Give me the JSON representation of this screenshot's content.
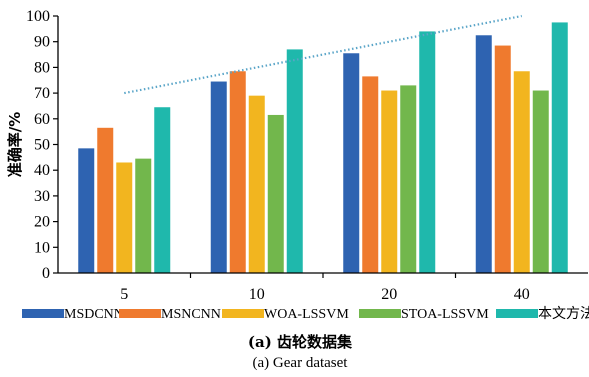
{
  "chart_data": {
    "type": "bar",
    "ylabel": "准确率/%",
    "xlabel": "",
    "categories": [
      "5",
      "10",
      "20",
      "40"
    ],
    "ylim": [
      0,
      100
    ],
    "yticks": [
      0,
      10,
      20,
      30,
      40,
      50,
      60,
      70,
      80,
      90,
      100
    ],
    "grid": false,
    "legend_position": "bottom",
    "series": [
      {
        "name": "MSDCNN",
        "color": "#2e63b1",
        "values": [
          48.5,
          74.5,
          85.5,
          92.5
        ]
      },
      {
        "name": "MSNCNN",
        "color": "#ef7a2e",
        "values": [
          56.5,
          78.5,
          76.5,
          88.5
        ]
      },
      {
        "name": "WOA-LSSVM",
        "color": "#f2b51f",
        "values": [
          43,
          69,
          71,
          78.5
        ]
      },
      {
        "name": "STOA-LSSVM",
        "color": "#72b74c",
        "values": [
          44.5,
          61.5,
          73,
          71
        ]
      },
      {
        "name": "本文方法",
        "color": "#1fb8ac",
        "values": [
          64.5,
          87,
          94,
          97.5
        ]
      }
    ],
    "trend_line": {
      "color": "#5aa5c8",
      "start": {
        "x": "5",
        "y": 70
      },
      "end": {
        "x": "40",
        "y": 100
      }
    }
  },
  "caption": {
    "line1": "(a) 齿轮数据集",
    "line2": "(a) Gear dataset"
  }
}
